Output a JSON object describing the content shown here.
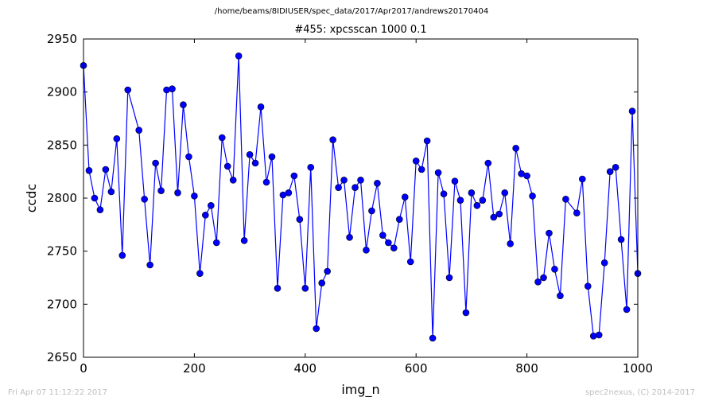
{
  "header": {
    "path": "/home/beams/8IDIUSER/spec_data/2017/Apr2017/andrews20170404",
    "scan_title": "#455: xpcsscan 1000 0.1"
  },
  "footer": {
    "timestamp": "Fri Apr 07 11:12:22 2017",
    "credit": "spec2nexus, (C) 2014-2017"
  },
  "chart_data": {
    "type": "line",
    "title": "#455: xpcsscan 1000 0.1",
    "xlabel": "img_n",
    "ylabel": "ccdc",
    "xlim": [
      0,
      1000
    ],
    "ylim": [
      2650,
      2950
    ],
    "xticks": [
      0,
      200,
      400,
      600,
      800,
      1000
    ],
    "yticks": [
      2650,
      2700,
      2750,
      2800,
      2850,
      2900,
      2950
    ],
    "grid": false,
    "marker": "circle",
    "line_color": "#0000ff",
    "marker_color": "#0000ff",
    "x": [
      0,
      10,
      20,
      30,
      40,
      50,
      60,
      70,
      80,
      100,
      110,
      120,
      130,
      140,
      150,
      160,
      170,
      180,
      190,
      200,
      210,
      220,
      230,
      240,
      250,
      260,
      270,
      280,
      290,
      300,
      310,
      320,
      330,
      340,
      350,
      360,
      370,
      380,
      390,
      400,
      410,
      420,
      430,
      440,
      450,
      460,
      470,
      480,
      490,
      500,
      510,
      520,
      530,
      540,
      550,
      560,
      570,
      580,
      590,
      600,
      610,
      620,
      630,
      640,
      650,
      660,
      670,
      680,
      690,
      700,
      710,
      720,
      730,
      740,
      750,
      760,
      770,
      780,
      790,
      800,
      810,
      820,
      830,
      840,
      850,
      860,
      870,
      890,
      900,
      910,
      920,
      930,
      940,
      950,
      960,
      970,
      980,
      990,
      1000
    ],
    "y": [
      2925,
      2826,
      2800,
      2789,
      2827,
      2806,
      2856,
      2746,
      2902,
      2864,
      2799,
      2737,
      2833,
      2807,
      2902,
      2903,
      2805,
      2888,
      2839,
      2802,
      2729,
      2784,
      2793,
      2758,
      2857,
      2830,
      2817,
      2934,
      2760,
      2841,
      2833,
      2886,
      2815,
      2839,
      2715,
      2803,
      2805,
      2821,
      2780,
      2715,
      2829,
      2677,
      2720,
      2731,
      2855,
      2810,
      2817,
      2763,
      2810,
      2817,
      2751,
      2788,
      2814,
      2765,
      2758,
      2753,
      2780,
      2801,
      2740,
      2835,
      2827,
      2854,
      2668,
      2824,
      2804,
      2725,
      2816,
      2798,
      2692,
      2805,
      2793,
      2798,
      2833,
      2782,
      2785,
      2805,
      2757,
      2847,
      2823,
      2821,
      2802,
      2721,
      2725,
      2767,
      2733,
      2708,
      2799,
      2786,
      2818,
      2717,
      2670,
      2671,
      2739,
      2825,
      2829,
      2761,
      2695,
      2882,
      2729
    ]
  }
}
